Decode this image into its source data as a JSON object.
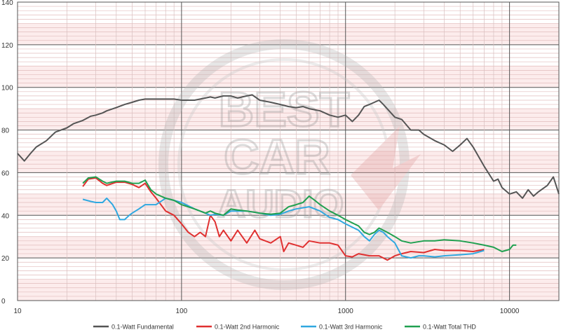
{
  "chart_data": {
    "type": "line",
    "title": "",
    "xlabel": "",
    "ylabel": "",
    "x_scale": "log",
    "xlim": [
      10,
      20000
    ],
    "ylim": [
      0,
      140
    ],
    "grid": true,
    "legend_position": "bottom",
    "x_ticks": [
      "10",
      "100",
      "1000",
      "10000"
    ],
    "y_ticks": [
      "0",
      "20",
      "40",
      "60",
      "80",
      "100",
      "120",
      "140"
    ],
    "watermark": "BEST CAR AUDIO",
    "series": [
      {
        "name": "0.1-Watt Fundamental",
        "color": "#555555",
        "points": [
          [
            10,
            69
          ],
          [
            11,
            65.5
          ],
          [
            12,
            69
          ],
          [
            13,
            72
          ],
          [
            15,
            75
          ],
          [
            17,
            79
          ],
          [
            20,
            81
          ],
          [
            22,
            83
          ],
          [
            25,
            84.5
          ],
          [
            28,
            86.5
          ],
          [
            30,
            87
          ],
          [
            33,
            88
          ],
          [
            35,
            89
          ],
          [
            40,
            90.5
          ],
          [
            45,
            92
          ],
          [
            50,
            93
          ],
          [
            55,
            94
          ],
          [
            60,
            94.5
          ],
          [
            70,
            94.5
          ],
          [
            80,
            94.5
          ],
          [
            90,
            94.5
          ],
          [
            100,
            94
          ],
          [
            120,
            94
          ],
          [
            140,
            95
          ],
          [
            150,
            95.5
          ],
          [
            160,
            95
          ],
          [
            180,
            96
          ],
          [
            200,
            96
          ],
          [
            220,
            95
          ],
          [
            250,
            96
          ],
          [
            270,
            96.5
          ],
          [
            300,
            94
          ],
          [
            350,
            93
          ],
          [
            400,
            92
          ],
          [
            450,
            91
          ],
          [
            500,
            90.5
          ],
          [
            550,
            91
          ],
          [
            600,
            90
          ],
          [
            700,
            89
          ],
          [
            800,
            87
          ],
          [
            900,
            86
          ],
          [
            1000,
            87
          ],
          [
            1100,
            84
          ],
          [
            1200,
            87
          ],
          [
            1300,
            91
          ],
          [
            1400,
            92
          ],
          [
            1600,
            94
          ],
          [
            1700,
            92
          ],
          [
            2000,
            86
          ],
          [
            2200,
            85
          ],
          [
            2500,
            80
          ],
          [
            2800,
            80
          ],
          [
            3000,
            78
          ],
          [
            3500,
            75
          ],
          [
            4000,
            73
          ],
          [
            4500,
            70
          ],
          [
            5000,
            73
          ],
          [
            5500,
            76
          ],
          [
            6000,
            72
          ],
          [
            7000,
            63
          ],
          [
            8000,
            56
          ],
          [
            8500,
            57
          ],
          [
            9000,
            53
          ],
          [
            10000,
            50
          ],
          [
            11000,
            51
          ],
          [
            12000,
            48
          ],
          [
            13000,
            52
          ],
          [
            14000,
            49
          ],
          [
            15000,
            51
          ],
          [
            17000,
            54
          ],
          [
            18500,
            58
          ],
          [
            20000,
            50
          ]
        ]
      },
      {
        "name": "0.1-Watt 2nd Harmonic",
        "color": "#e03030",
        "points": [
          [
            25,
            53.5
          ],
          [
            27,
            57
          ],
          [
            30,
            57.5
          ],
          [
            33,
            55
          ],
          [
            35,
            54
          ],
          [
            40,
            55.5
          ],
          [
            45,
            55.5
          ],
          [
            50,
            54.5
          ],
          [
            55,
            53
          ],
          [
            60,
            55
          ],
          [
            65,
            51
          ],
          [
            70,
            48
          ],
          [
            80,
            42
          ],
          [
            90,
            40
          ],
          [
            100,
            36
          ],
          [
            110,
            32
          ],
          [
            120,
            30
          ],
          [
            130,
            32
          ],
          [
            140,
            30
          ],
          [
            150,
            40
          ],
          [
            160,
            37
          ],
          [
            170,
            30
          ],
          [
            180,
            33
          ],
          [
            200,
            28
          ],
          [
            220,
            33
          ],
          [
            250,
            27
          ],
          [
            280,
            33
          ],
          [
            300,
            29
          ],
          [
            350,
            27
          ],
          [
            400,
            30
          ],
          [
            420,
            23
          ],
          [
            450,
            27
          ],
          [
            500,
            26
          ],
          [
            550,
            25
          ],
          [
            600,
            28
          ],
          [
            700,
            27
          ],
          [
            800,
            27
          ],
          [
            900,
            26
          ],
          [
            1000,
            21
          ],
          [
            1100,
            20.5
          ],
          [
            1200,
            22
          ],
          [
            1400,
            21
          ],
          [
            1600,
            21
          ],
          [
            1800,
            19
          ],
          [
            2000,
            21
          ],
          [
            2200,
            22
          ],
          [
            2500,
            23
          ],
          [
            3000,
            22.5
          ],
          [
            3500,
            24
          ],
          [
            4000,
            23.5
          ],
          [
            5000,
            23.5
          ],
          [
            6000,
            23
          ],
          [
            7000,
            24
          ]
        ]
      },
      {
        "name": "0.1-Watt 3rd Harmonic",
        "color": "#30a8e0",
        "points": [
          [
            25,
            47.5
          ],
          [
            28,
            46.5
          ],
          [
            30,
            46
          ],
          [
            33,
            46
          ],
          [
            35,
            48
          ],
          [
            38,
            45
          ],
          [
            40,
            42
          ],
          [
            42,
            38
          ],
          [
            45,
            38
          ],
          [
            48,
            40
          ],
          [
            50,
            41
          ],
          [
            55,
            43
          ],
          [
            60,
            45
          ],
          [
            70,
            45
          ],
          [
            80,
            48
          ],
          [
            90,
            47
          ],
          [
            100,
            46
          ],
          [
            120,
            43
          ],
          [
            140,
            41
          ],
          [
            150,
            40
          ],
          [
            160,
            40.5
          ],
          [
            180,
            40
          ],
          [
            200,
            42
          ],
          [
            250,
            42
          ],
          [
            300,
            41
          ],
          [
            350,
            40
          ],
          [
            400,
            40.5
          ],
          [
            450,
            42
          ],
          [
            500,
            43
          ],
          [
            600,
            44
          ],
          [
            700,
            42
          ],
          [
            800,
            39
          ],
          [
            900,
            38
          ],
          [
            1000,
            36
          ],
          [
            1200,
            33
          ],
          [
            1300,
            30
          ],
          [
            1400,
            28
          ],
          [
            1500,
            31
          ],
          [
            1600,
            33
          ],
          [
            1700,
            32
          ],
          [
            1800,
            30
          ],
          [
            2000,
            27
          ],
          [
            2200,
            21
          ],
          [
            2500,
            20
          ],
          [
            2800,
            21
          ],
          [
            3000,
            21
          ],
          [
            3500,
            20.5
          ],
          [
            4000,
            21
          ],
          [
            5000,
            21.5
          ],
          [
            6000,
            22
          ],
          [
            7000,
            23.5
          ]
        ]
      },
      {
        "name": "0.1-Watt Total THD",
        "color": "#20a050",
        "points": [
          [
            25,
            55
          ],
          [
            27,
            57.5
          ],
          [
            30,
            58
          ],
          [
            33,
            56
          ],
          [
            35,
            55
          ],
          [
            40,
            56
          ],
          [
            45,
            56
          ],
          [
            50,
            55
          ],
          [
            55,
            55
          ],
          [
            60,
            56.5
          ],
          [
            65,
            52
          ],
          [
            70,
            50
          ],
          [
            80,
            48
          ],
          [
            90,
            47
          ],
          [
            100,
            45
          ],
          [
            120,
            43
          ],
          [
            140,
            41
          ],
          [
            150,
            42
          ],
          [
            160,
            41
          ],
          [
            180,
            40
          ],
          [
            200,
            43
          ],
          [
            220,
            42.5
          ],
          [
            250,
            42
          ],
          [
            300,
            41
          ],
          [
            350,
            40.5
          ],
          [
            400,
            41
          ],
          [
            450,
            44
          ],
          [
            500,
            45
          ],
          [
            550,
            46
          ],
          [
            600,
            49
          ],
          [
            650,
            47
          ],
          [
            700,
            45
          ],
          [
            800,
            42
          ],
          [
            900,
            40
          ],
          [
            1000,
            38
          ],
          [
            1200,
            35
          ],
          [
            1300,
            32
          ],
          [
            1400,
            31
          ],
          [
            1500,
            32
          ],
          [
            1600,
            34
          ],
          [
            1700,
            33
          ],
          [
            1800,
            32
          ],
          [
            2000,
            30
          ],
          [
            2200,
            28
          ],
          [
            2500,
            27
          ],
          [
            3000,
            28
          ],
          [
            3500,
            28
          ],
          [
            4000,
            28.5
          ],
          [
            5000,
            28
          ],
          [
            6000,
            27
          ],
          [
            7000,
            26
          ],
          [
            8000,
            25
          ],
          [
            9000,
            23
          ],
          [
            10000,
            24
          ],
          [
            10500,
            26
          ],
          [
            11000,
            26
          ]
        ]
      }
    ]
  }
}
